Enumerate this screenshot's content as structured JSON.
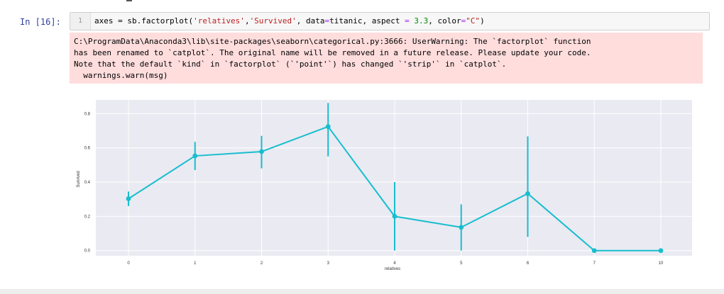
{
  "cell": {
    "prompt": "In [16]:",
    "line_number": "1",
    "code": {
      "p1": "axes = sb.factorplot(",
      "s1": "'relatives'",
      "p2": ",",
      "s2": "'Survived'",
      "p3": ", data",
      "op1": "=",
      "p4": "titanic, aspect ",
      "op2": "=",
      "p5": " ",
      "n1": "3.3",
      "p6": ", color",
      "op3": "=",
      "s3": "\"C\"",
      "p7": ")"
    }
  },
  "warning": {
    "line1": "C:\\ProgramData\\Anaconda3\\lib\\site-packages\\seaborn\\categorical.py:3666: UserWarning: The `factorplot` function",
    "line2": "has been renamed to `catplot`. The original name will be removed in a future release. Please update your code.",
    "line3": "Note that the default `kind` in `factorplot` (`'point'`) has changed `'strip'` in `catplot`.",
    "line4": "  warnings.warn(msg)"
  },
  "chart_data": {
    "type": "line",
    "xlabel": "relatives",
    "ylabel": "Survived",
    "categories": [
      "0",
      "1",
      "2",
      "3",
      "4",
      "5",
      "6",
      "7",
      "10"
    ],
    "values": [
      0.303,
      0.553,
      0.578,
      0.724,
      0.2,
      0.136,
      0.333,
      0.0,
      0.0
    ],
    "ci_low": [
      0.26,
      0.47,
      0.48,
      0.55,
      0.0,
      0.0,
      0.08,
      0.0,
      0.0
    ],
    "ci_high": [
      0.345,
      0.635,
      0.67,
      0.862,
      0.4,
      0.27,
      0.667,
      0.0,
      0.0
    ],
    "yticks": [
      "0.0",
      "0.2",
      "0.4",
      "0.6",
      "0.8"
    ],
    "ylim": [
      -0.03,
      0.88
    ],
    "color": "#17becf",
    "background": "#eaeaf2",
    "grid": true
  }
}
